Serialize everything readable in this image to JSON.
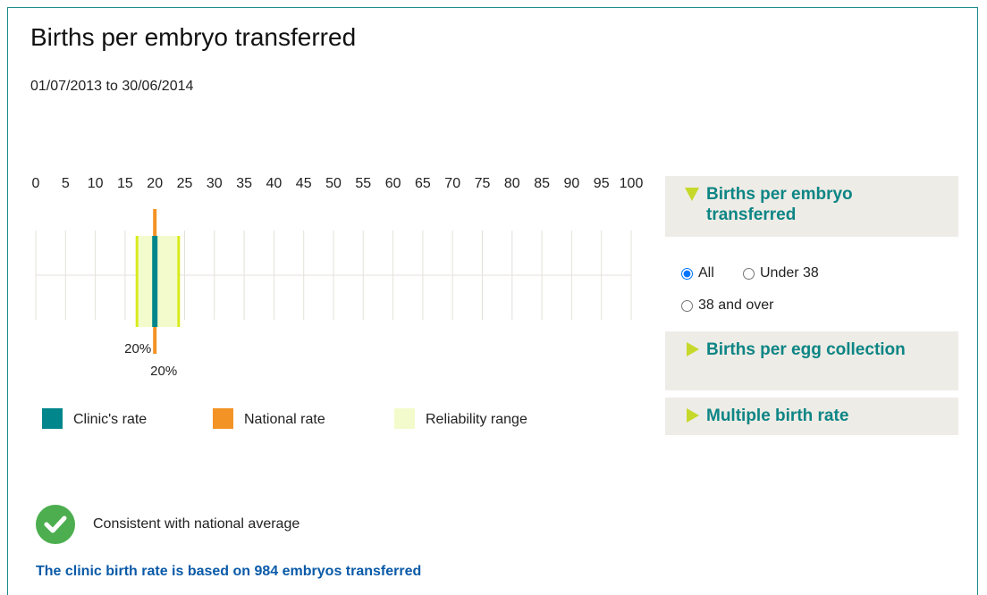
{
  "header": {
    "title": "Births per embryo transferred",
    "subtitle": "01/07/2013 to 30/06/2014"
  },
  "chart_data": {
    "type": "range",
    "xlim": [
      0,
      100
    ],
    "xticks": [
      0,
      5,
      10,
      15,
      20,
      25,
      30,
      35,
      40,
      45,
      50,
      55,
      60,
      65,
      70,
      75,
      80,
      85,
      90,
      95,
      100
    ],
    "grid": true,
    "series": [
      {
        "name": "Clinic's rate",
        "color": "#00868b",
        "values": [
          20
        ],
        "value_labels": [
          "20%"
        ]
      },
      {
        "name": "National rate",
        "color": "#f39325",
        "values": [
          20
        ],
        "value_labels": [
          "20%"
        ]
      },
      {
        "name": "Reliability range",
        "color": "#f3fbcc",
        "edge_color": "#d8ea1c",
        "values": [
          17,
          24
        ]
      }
    ]
  },
  "panel": {
    "sections": [
      {
        "title": "Births per embryo transferred",
        "expanded": true
      },
      {
        "title": "Births per egg collection",
        "expanded": false
      },
      {
        "title": "Multiple birth rate",
        "expanded": false
      }
    ],
    "options": [
      {
        "label": "All",
        "checked": true
      },
      {
        "label": "Under 38",
        "checked": false
      },
      {
        "label": "38 and over",
        "checked": false
      }
    ]
  },
  "footer": {
    "status": "Consistent with national average",
    "note": "The clinic birth rate is based on 984 embryos transferred"
  }
}
